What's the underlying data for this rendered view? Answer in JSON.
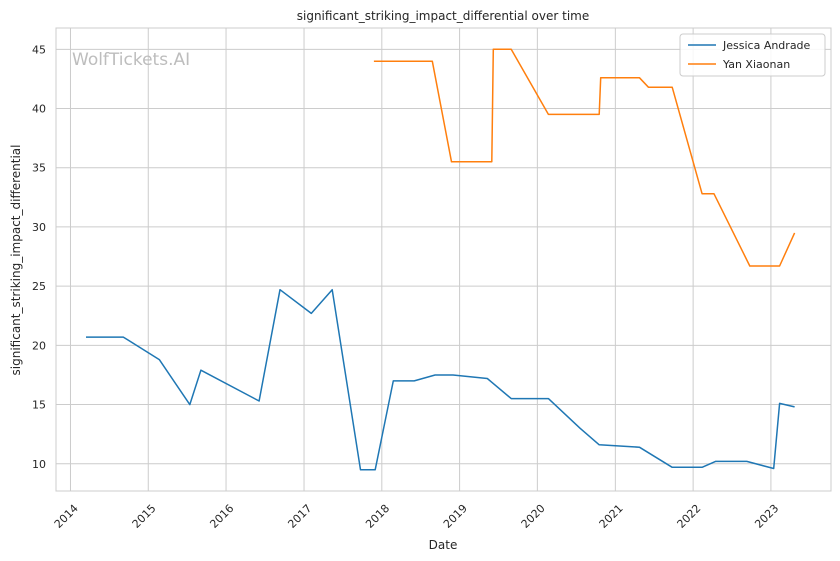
{
  "chart_data": {
    "type": "line",
    "title": "significant_striking_impact_differential over time",
    "xlabel": "Date",
    "ylabel": "significant_striking_impact_differential",
    "watermark": "WolfTickets.AI",
    "xlim": [
      "2013-10-25",
      "2023-10-10"
    ],
    "ylim": [
      7.7,
      46.8
    ],
    "x_ticks": [
      "2014",
      "2015",
      "2016",
      "2017",
      "2018",
      "2019",
      "2020",
      "2021",
      "2022",
      "2023"
    ],
    "y_ticks": [
      10,
      15,
      20,
      25,
      30,
      35,
      40,
      45
    ],
    "grid": true,
    "legend_position": "top-right",
    "series": [
      {
        "name": "Jessica Andrade",
        "color": "#1f77b4",
        "points": [
          [
            "2014-03-15",
            20.7
          ],
          [
            "2014-09-06",
            20.7
          ],
          [
            "2015-02-22",
            18.8
          ],
          [
            "2015-07-15",
            15.0
          ],
          [
            "2015-09-05",
            17.9
          ],
          [
            "2016-06-04",
            15.3
          ],
          [
            "2016-09-10",
            24.7
          ],
          [
            "2017-02-04",
            22.7
          ],
          [
            "2017-05-13",
            24.7
          ],
          [
            "2017-09-23",
            9.5
          ],
          [
            "2017-12-01",
            9.5
          ],
          [
            "2018-02-24",
            17.0
          ],
          [
            "2018-06-02",
            17.0
          ],
          [
            "2018-09-08",
            17.5
          ],
          [
            "2018-12-01",
            17.5
          ],
          [
            "2019-05-11",
            17.2
          ],
          [
            "2019-08-31",
            15.5
          ],
          [
            "2020-02-22",
            15.5
          ],
          [
            "2020-07-19",
            13.0
          ],
          [
            "2020-10-17",
            11.6
          ],
          [
            "2021-04-24",
            11.4
          ],
          [
            "2021-09-25",
            9.7
          ],
          [
            "2022-02-12",
            9.7
          ],
          [
            "2022-04-16",
            10.2
          ],
          [
            "2022-09-10",
            10.2
          ],
          [
            "2023-01-14",
            9.6
          ],
          [
            "2023-02-11",
            15.1
          ],
          [
            "2023-04-22",
            14.8
          ]
        ]
      },
      {
        "name": "Yan Xiaonan",
        "color": "#ff7f0e",
        "points": [
          [
            "2017-11-25",
            44.0
          ],
          [
            "2018-08-26",
            44.0
          ],
          [
            "2018-11-24",
            35.5
          ],
          [
            "2019-06-01",
            35.5
          ],
          [
            "2019-06-08",
            45.0
          ],
          [
            "2019-08-31",
            45.0
          ],
          [
            "2020-02-22",
            39.5
          ],
          [
            "2020-10-17",
            39.5
          ],
          [
            "2020-10-24",
            42.6
          ],
          [
            "2021-04-24",
            42.6
          ],
          [
            "2021-06-05",
            41.8
          ],
          [
            "2021-09-25",
            41.8
          ],
          [
            "2022-02-12",
            32.8
          ],
          [
            "2022-04-09",
            32.8
          ],
          [
            "2022-09-24",
            26.7
          ],
          [
            "2023-02-11",
            26.7
          ],
          [
            "2023-04-22",
            29.5
          ]
        ]
      }
    ]
  }
}
